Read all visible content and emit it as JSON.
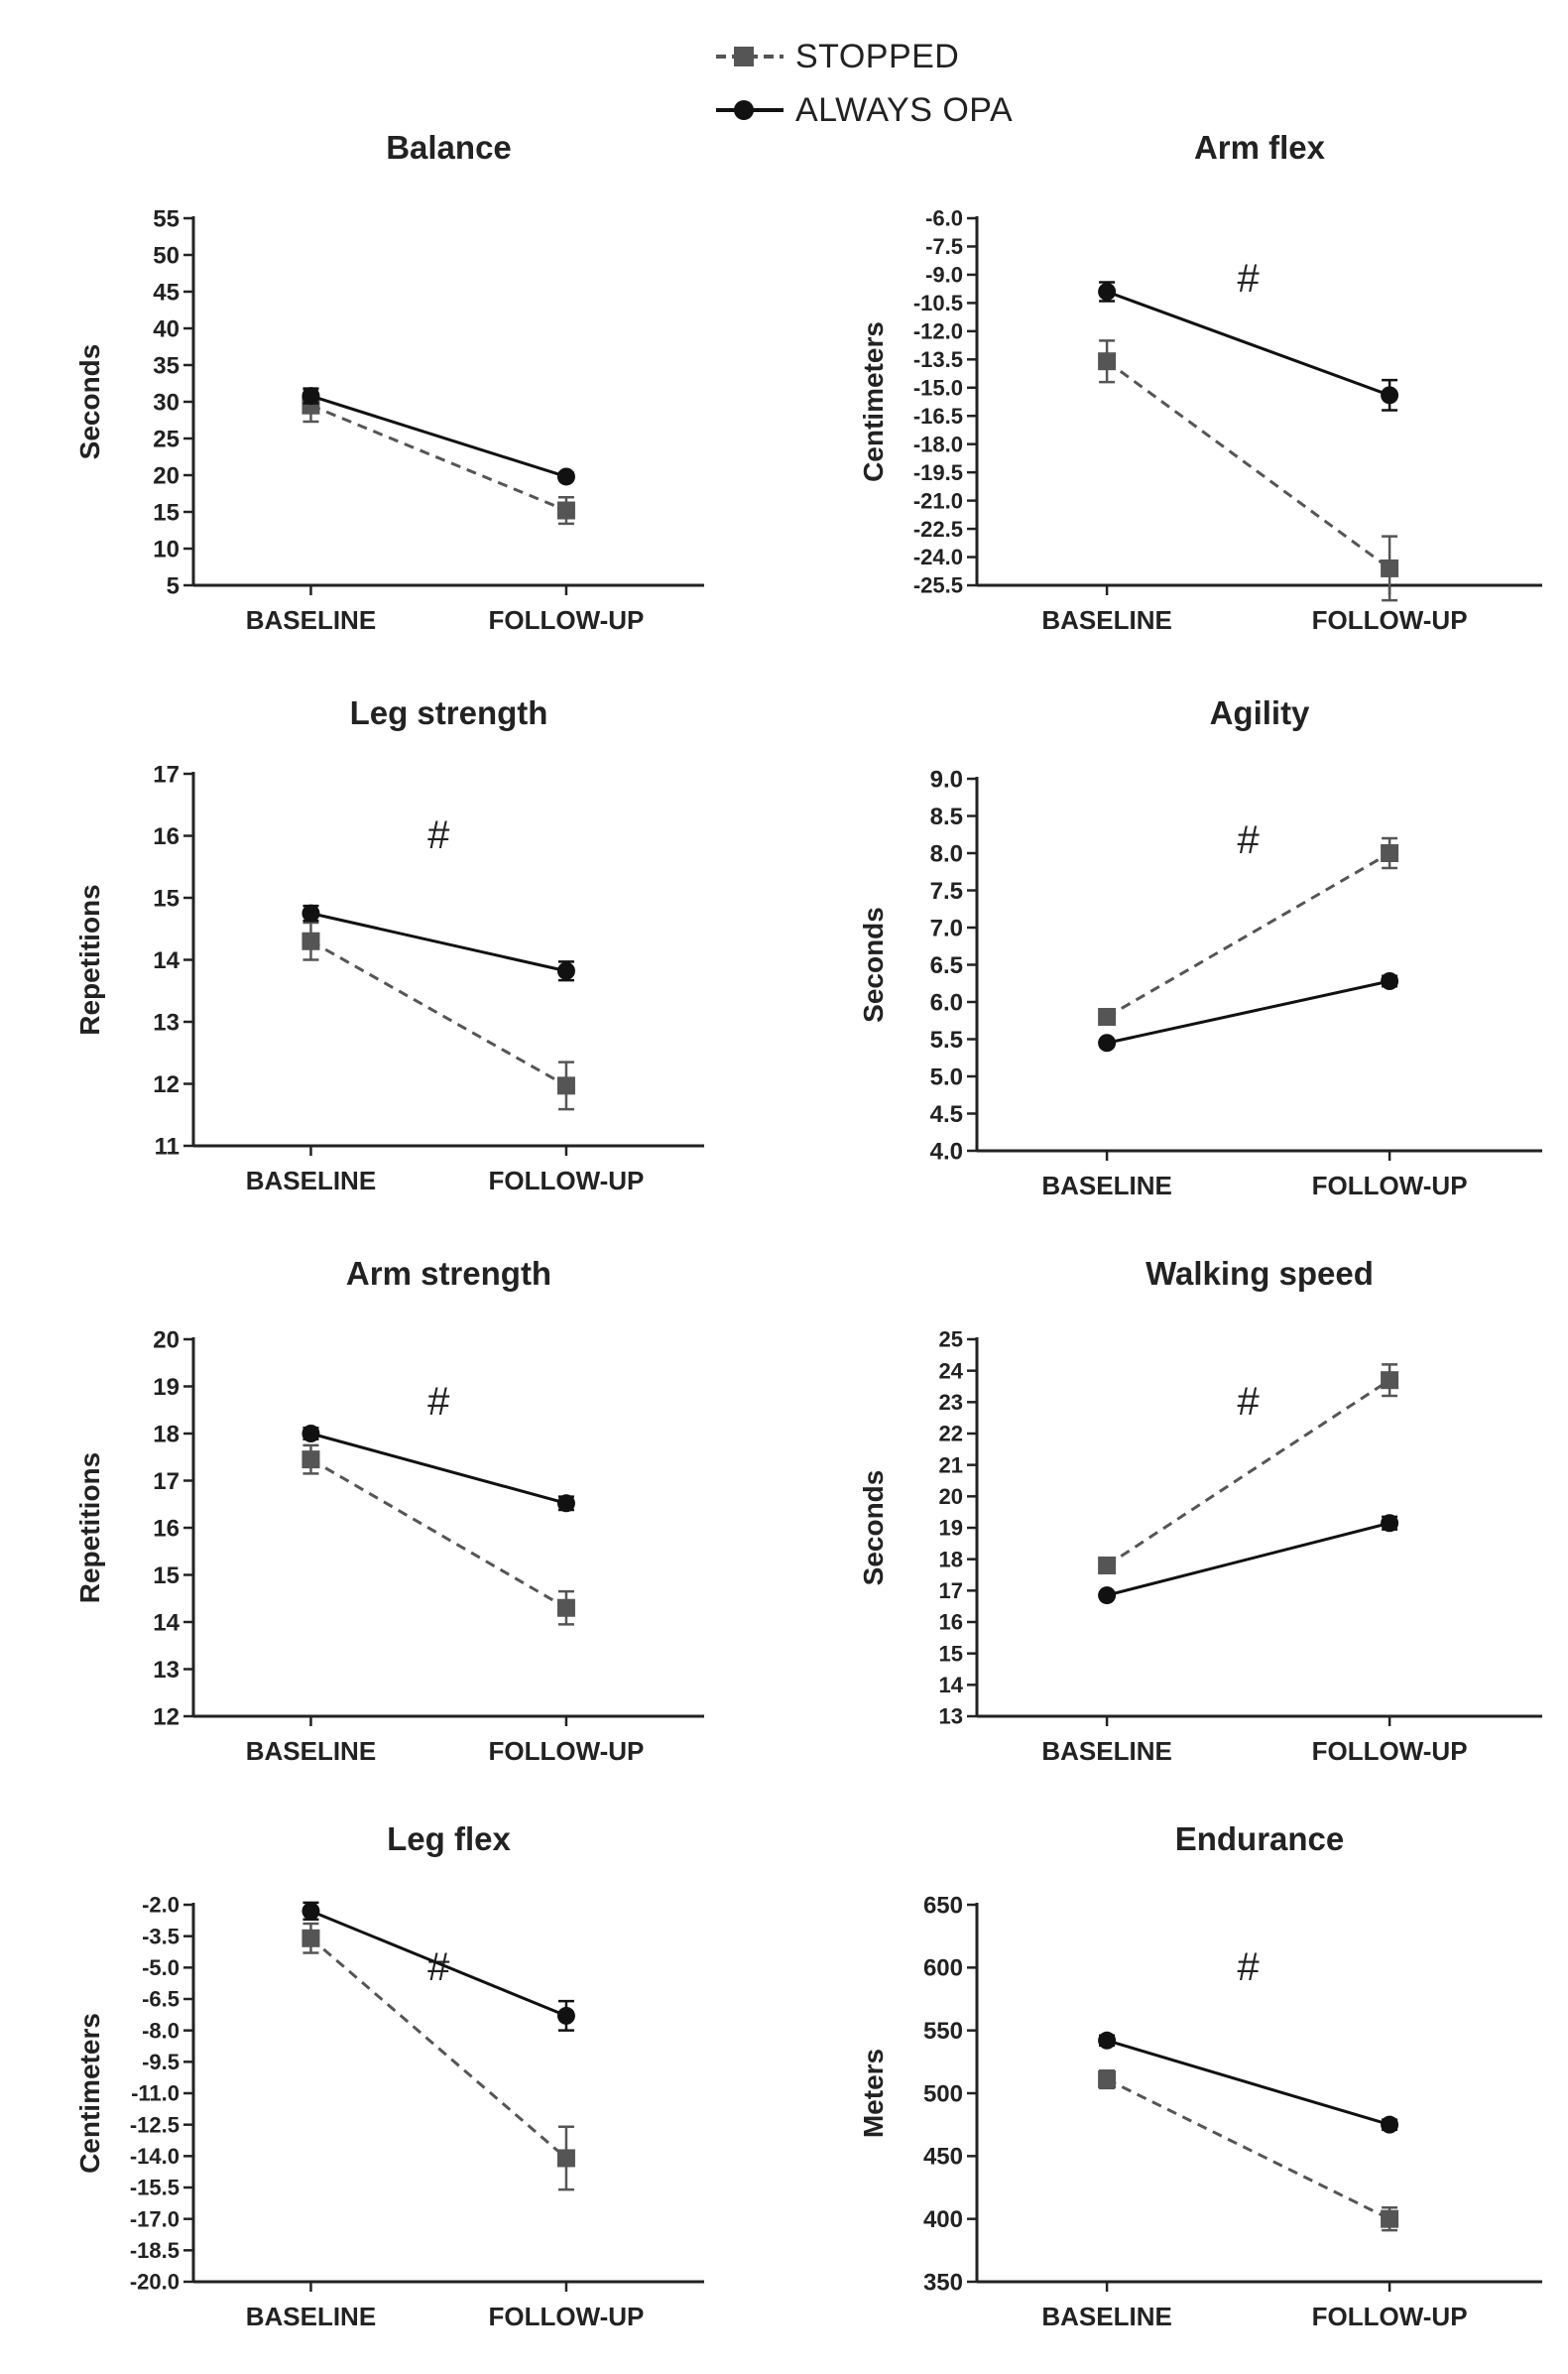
{
  "legend": {
    "stopped_label": "STOPPED",
    "always_label": "ALWAYS OPA"
  },
  "colors": {
    "stopped": "#555555",
    "always": "#111111",
    "axis": "#222222"
  },
  "chart_data": [
    {
      "id": "balance",
      "type": "line",
      "title": "Balance",
      "ylabel": "Seconds",
      "categories": [
        "BASELINE",
        "FOLLOW-UP"
      ],
      "ylim": [
        5,
        55
      ],
      "yticks": [
        "5",
        "10",
        "15",
        "20",
        "25",
        "30",
        "35",
        "40",
        "45",
        "50",
        "55"
      ],
      "significance": "",
      "series": [
        {
          "name": "STOPPED",
          "values": [
            29.5,
            15.2
          ],
          "errors": [
            2.2,
            1.8
          ]
        },
        {
          "name": "ALWAYS OPA",
          "values": [
            30.8,
            19.8
          ],
          "errors": [
            1.0,
            0.5
          ]
        }
      ]
    },
    {
      "id": "arm-flex",
      "type": "line",
      "title": "Arm flex",
      "ylabel": "Centimeters",
      "categories": [
        "BASELINE",
        "FOLLOW-UP"
      ],
      "ylim": [
        -25.5,
        -6.0
      ],
      "yticks": [
        "-6.0",
        "-7.5",
        "-9.0",
        "-10.5",
        "-12.0",
        "-13.5",
        "-15.0",
        "-16.5",
        "-18.0",
        "-19.5",
        "-21.0",
        "-22.5",
        "-24.0",
        "-25.5"
      ],
      "significance": "#",
      "series": [
        {
          "name": "STOPPED",
          "values": [
            -13.6,
            -24.6
          ],
          "errors": [
            1.1,
            1.7
          ]
        },
        {
          "name": "ALWAYS OPA",
          "values": [
            -9.9,
            -15.4
          ],
          "errors": [
            0.5,
            0.8
          ]
        }
      ]
    },
    {
      "id": "leg-strength",
      "type": "line",
      "title": "Leg strength",
      "ylabel": "Repetitions",
      "categories": [
        "BASELINE",
        "FOLLOW-UP"
      ],
      "ylim": [
        11,
        17
      ],
      "yticks": [
        "11",
        "12",
        "13",
        "14",
        "15",
        "16",
        "17"
      ],
      "significance": "#",
      "series": [
        {
          "name": "STOPPED",
          "values": [
            14.3,
            11.97
          ],
          "errors": [
            0.3,
            0.38
          ]
        },
        {
          "name": "ALWAYS OPA",
          "values": [
            14.75,
            13.82
          ],
          "errors": [
            0.12,
            0.15
          ]
        }
      ]
    },
    {
      "id": "agility",
      "type": "line",
      "title": "Agility",
      "ylabel": "Seconds",
      "categories": [
        "BASELINE",
        "FOLLOW-UP"
      ],
      "ylim": [
        4.0,
        9.0
      ],
      "yticks": [
        "4.0",
        "4.5",
        "5.0",
        "5.5",
        "6.0",
        "6.5",
        "7.0",
        "7.5",
        "8.0",
        "8.5",
        "9.0"
      ],
      "significance": "#",
      "series": [
        {
          "name": "STOPPED",
          "values": [
            5.8,
            8.0
          ],
          "errors": [
            0.07,
            0.2
          ]
        },
        {
          "name": "ALWAYS OPA",
          "values": [
            5.45,
            6.28
          ],
          "errors": [
            0.04,
            0.07
          ]
        }
      ]
    },
    {
      "id": "arm-strength",
      "type": "line",
      "title": "Arm strength",
      "ylabel": "Repetitions",
      "categories": [
        "BASELINE",
        "FOLLOW-UP"
      ],
      "ylim": [
        12,
        20
      ],
      "yticks": [
        "12",
        "13",
        "14",
        "15",
        "16",
        "17",
        "18",
        "19",
        "20"
      ],
      "significance": "#",
      "series": [
        {
          "name": "STOPPED",
          "values": [
            17.45,
            14.3
          ],
          "errors": [
            0.3,
            0.35
          ]
        },
        {
          "name": "ALWAYS OPA",
          "values": [
            18.0,
            16.52
          ],
          "errors": [
            0.12,
            0.14
          ]
        }
      ]
    },
    {
      "id": "walking-speed",
      "type": "line",
      "title": "Walking speed",
      "ylabel": "Seconds",
      "categories": [
        "BASELINE",
        "FOLLOW-UP"
      ],
      "ylim": [
        13,
        25
      ],
      "yticks": [
        "13",
        "14",
        "15",
        "16",
        "17",
        "18",
        "19",
        "20",
        "21",
        "22",
        "23",
        "24",
        "25"
      ],
      "significance": "#",
      "series": [
        {
          "name": "STOPPED",
          "values": [
            17.8,
            23.7
          ],
          "errors": [
            0.15,
            0.5
          ]
        },
        {
          "name": "ALWAYS OPA",
          "values": [
            16.85,
            19.15
          ],
          "errors": [
            0.08,
            0.2
          ]
        }
      ]
    },
    {
      "id": "leg-flex",
      "type": "line",
      "title": "Leg flex",
      "ylabel": "Centimeters",
      "categories": [
        "BASELINE",
        "FOLLOW-UP"
      ],
      "ylim": [
        -20.0,
        -2.0
      ],
      "yticks": [
        "-2.0",
        "-3.5",
        "-5.0",
        "-6.5",
        "-8.0",
        "-9.5",
        "-11.0",
        "-12.5",
        "-14.0",
        "-15.5",
        "-17.0",
        "-18.5",
        "-20.0"
      ],
      "significance": "#",
      "series": [
        {
          "name": "STOPPED",
          "values": [
            -3.6,
            -14.1
          ],
          "errors": [
            0.7,
            1.5
          ]
        },
        {
          "name": "ALWAYS OPA",
          "values": [
            -2.3,
            -7.3
          ],
          "errors": [
            0.4,
            0.7
          ]
        }
      ]
    },
    {
      "id": "endurance",
      "type": "line",
      "title": "Endurance",
      "ylabel": "Meters",
      "categories": [
        "BASELINE",
        "FOLLOW-UP"
      ],
      "ylim": [
        350,
        650
      ],
      "yticks": [
        "350",
        "400",
        "450",
        "500",
        "550",
        "600",
        "650"
      ],
      "significance": "#",
      "series": [
        {
          "name": "STOPPED",
          "values": [
            511,
            400
          ],
          "errors": [
            7,
            9
          ]
        },
        {
          "name": "ALWAYS OPA",
          "values": [
            542,
            475
          ],
          "errors": [
            4,
            4
          ]
        }
      ]
    }
  ]
}
